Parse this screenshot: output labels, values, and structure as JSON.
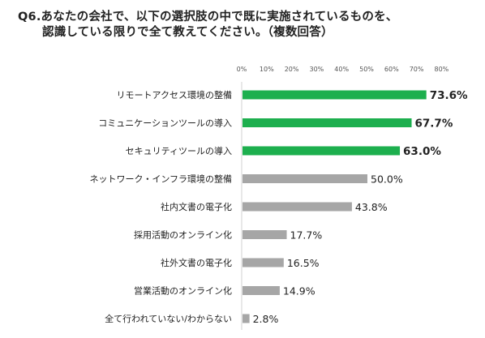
{
  "title": {
    "line1": "Q6.あなたの会社で、以下の選択肢の中で既に実施されているものを、",
    "line2": "認識している限りで全て教えてください。（複数回答）"
  },
  "colors": {
    "highlight": "#1daf4e",
    "normal": "#a6a6a6"
  },
  "chart_data": {
    "type": "bar",
    "orientation": "horizontal",
    "xlim": [
      0,
      80
    ],
    "ticks": [
      "0%",
      "10%",
      "20%",
      "30%",
      "40%",
      "50%",
      "60%",
      "70%",
      "80%"
    ],
    "grid": false,
    "categories": [
      "リモートアクセス環境の整備",
      "コミュニケーションツールの導入",
      "セキュリティツールの導入",
      "ネットワーク・インフラ環境の整備",
      "社内文書の電子化",
      "採用活動のオンライン化",
      "社外文書の電子化",
      "営業活動のオンライン化",
      "全て行われていない/わからない"
    ],
    "values": [
      73.6,
      67.7,
      63.0,
      50.0,
      43.8,
      17.7,
      16.5,
      14.9,
      2.8
    ],
    "value_labels": [
      "73.6%",
      "67.7%",
      "63.0%",
      "50.0%",
      "43.8%",
      "17.7%",
      "16.5%",
      "14.9%",
      "2.8%"
    ],
    "highlighted": [
      true,
      true,
      true,
      false,
      false,
      false,
      false,
      false,
      false
    ]
  }
}
